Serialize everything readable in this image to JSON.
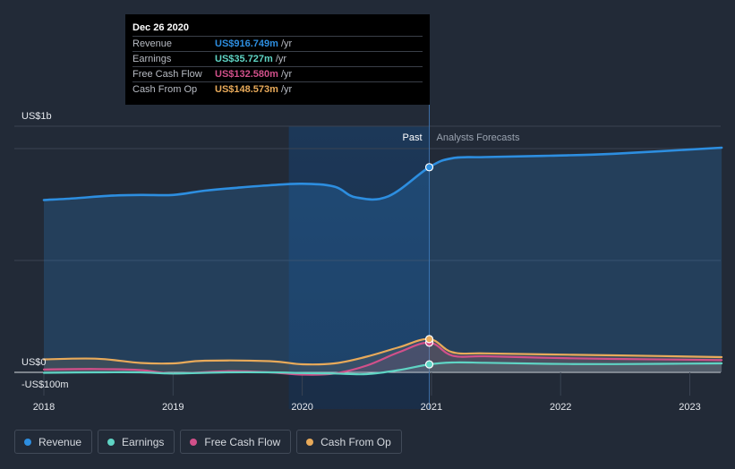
{
  "chart_data": {
    "type": "area",
    "x_range": [
      "2018-01-01",
      "2023-04-01"
    ],
    "ylim": [
      -100,
      1000
    ],
    "y_tick_labels": [
      "US$1b",
      "US$0",
      "-US$100m"
    ],
    "x_tick_labels": [
      "2018",
      "2019",
      "2020",
      "2021",
      "2022",
      "2023"
    ],
    "past_label": "Past",
    "forecast_label": "Analysts Forecasts",
    "divider_date": "2020-12-26",
    "series": [
      {
        "name": "Revenue",
        "color": "#2d8ee0",
        "points": [
          [
            "2018-01-01",
            770
          ],
          [
            "2018-04-01",
            778
          ],
          [
            "2018-07-01",
            789
          ],
          [
            "2018-10-01",
            793
          ],
          [
            "2019-01-01",
            793
          ],
          [
            "2019-04-01",
            812
          ],
          [
            "2019-07-01",
            825
          ],
          [
            "2019-10-01",
            836
          ],
          [
            "2020-01-01",
            843
          ],
          [
            "2020-04-01",
            830
          ],
          [
            "2020-06-01",
            782
          ],
          [
            "2020-09-01",
            787
          ],
          [
            "2020-12-26",
            916.749
          ],
          [
            "2021-03-01",
            957
          ],
          [
            "2021-06-01",
            962
          ],
          [
            "2021-12-01",
            968
          ],
          [
            "2022-06-01",
            977
          ],
          [
            "2023-04-01",
            1004
          ]
        ]
      },
      {
        "name": "Earnings",
        "color": "#5fd4c4",
        "points": [
          [
            "2018-01-01",
            -2
          ],
          [
            "2018-06-01",
            0
          ],
          [
            "2018-10-01",
            0
          ],
          [
            "2019-01-01",
            -5
          ],
          [
            "2019-06-01",
            0
          ],
          [
            "2019-10-01",
            0
          ],
          [
            "2020-01-01",
            -3
          ],
          [
            "2020-04-01",
            -5
          ],
          [
            "2020-07-01",
            -8
          ],
          [
            "2020-10-01",
            10
          ],
          [
            "2020-12-26",
            35.727
          ],
          [
            "2021-03-01",
            44
          ],
          [
            "2021-06-01",
            43
          ],
          [
            "2021-12-01",
            38
          ],
          [
            "2022-06-01",
            37
          ],
          [
            "2023-04-01",
            40
          ]
        ]
      },
      {
        "name": "Free Cash Flow",
        "color": "#d1508a",
        "points": [
          [
            "2018-01-01",
            13
          ],
          [
            "2018-06-01",
            15
          ],
          [
            "2018-10-01",
            10
          ],
          [
            "2019-01-01",
            -5
          ],
          [
            "2019-06-01",
            5
          ],
          [
            "2019-10-01",
            0
          ],
          [
            "2020-01-01",
            -10
          ],
          [
            "2020-04-01",
            -5
          ],
          [
            "2020-07-01",
            30
          ],
          [
            "2020-10-01",
            90
          ],
          [
            "2020-12-26",
            132.58
          ],
          [
            "2021-03-01",
            75
          ],
          [
            "2021-06-01",
            72
          ],
          [
            "2021-12-01",
            65
          ],
          [
            "2022-06-01",
            60
          ],
          [
            "2023-04-01",
            55
          ]
        ]
      },
      {
        "name": "Cash From Op",
        "color": "#e8aa5a",
        "points": [
          [
            "2018-01-01",
            58
          ],
          [
            "2018-06-01",
            61
          ],
          [
            "2018-10-01",
            42
          ],
          [
            "2019-01-01",
            40
          ],
          [
            "2019-04-01",
            52
          ],
          [
            "2019-10-01",
            50
          ],
          [
            "2020-01-01",
            36
          ],
          [
            "2020-04-01",
            40
          ],
          [
            "2020-07-01",
            70
          ],
          [
            "2020-10-01",
            112
          ],
          [
            "2020-12-26",
            148.573
          ],
          [
            "2021-03-01",
            90
          ],
          [
            "2021-06-01",
            85
          ],
          [
            "2021-12-01",
            80
          ],
          [
            "2022-06-01",
            76
          ],
          [
            "2023-04-01",
            68
          ]
        ]
      }
    ]
  },
  "tooltip": {
    "date": "Dec 26 2020",
    "rows": [
      {
        "label": "Revenue",
        "value": "US$916.749m",
        "unit": "/yr",
        "color": "#2d8ee0"
      },
      {
        "label": "Earnings",
        "value": "US$35.727m",
        "unit": "/yr",
        "color": "#5fd4c4"
      },
      {
        "label": "Free Cash Flow",
        "value": "US$132.580m",
        "unit": "/yr",
        "color": "#d1508a"
      },
      {
        "label": "Cash From Op",
        "value": "US$148.573m",
        "unit": "/yr",
        "color": "#e8aa5a"
      }
    ]
  },
  "legend": [
    {
      "label": "Revenue",
      "color": "#2d8ee0"
    },
    {
      "label": "Earnings",
      "color": "#5fd4c4"
    },
    {
      "label": "Free Cash Flow",
      "color": "#d1508a"
    },
    {
      "label": "Cash From Op",
      "color": "#e8aa5a"
    }
  ]
}
